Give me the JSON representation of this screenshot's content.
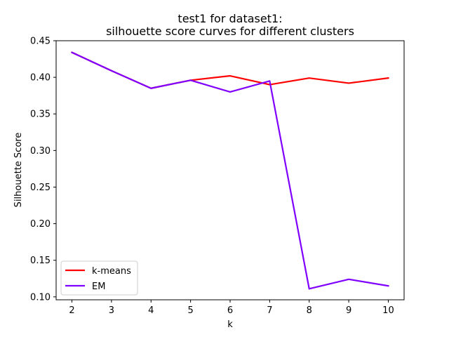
{
  "chart_data": {
    "type": "line",
    "title": "test1 for dataset1:",
    "subtitle": "silhouette score curves for different clusters",
    "xlabel": "k",
    "ylabel": "Silhouette Score",
    "x": [
      2,
      3,
      4,
      5,
      6,
      7,
      8,
      9,
      10
    ],
    "xlim": [
      1.6,
      10.4
    ],
    "ylim": [
      0.096,
      0.45
    ],
    "xticks": [
      "2",
      "3",
      "4",
      "5",
      "6",
      "7",
      "8",
      "9",
      "10"
    ],
    "yticks": [
      "0.10",
      "0.15",
      "0.20",
      "0.25",
      "0.30",
      "0.35",
      "0.40",
      "0.45"
    ],
    "grid": false,
    "legend_position": "lower-left",
    "series": [
      {
        "name": "k-means",
        "color": "#ff0000",
        "values": [
          0.434,
          0.409,
          0.385,
          0.396,
          0.402,
          0.39,
          0.399,
          0.392,
          0.399
        ]
      },
      {
        "name": "EM",
        "color": "#8000ff",
        "values": [
          0.434,
          0.409,
          0.385,
          0.396,
          0.38,
          0.395,
          0.111,
          0.124,
          0.115
        ]
      }
    ]
  }
}
